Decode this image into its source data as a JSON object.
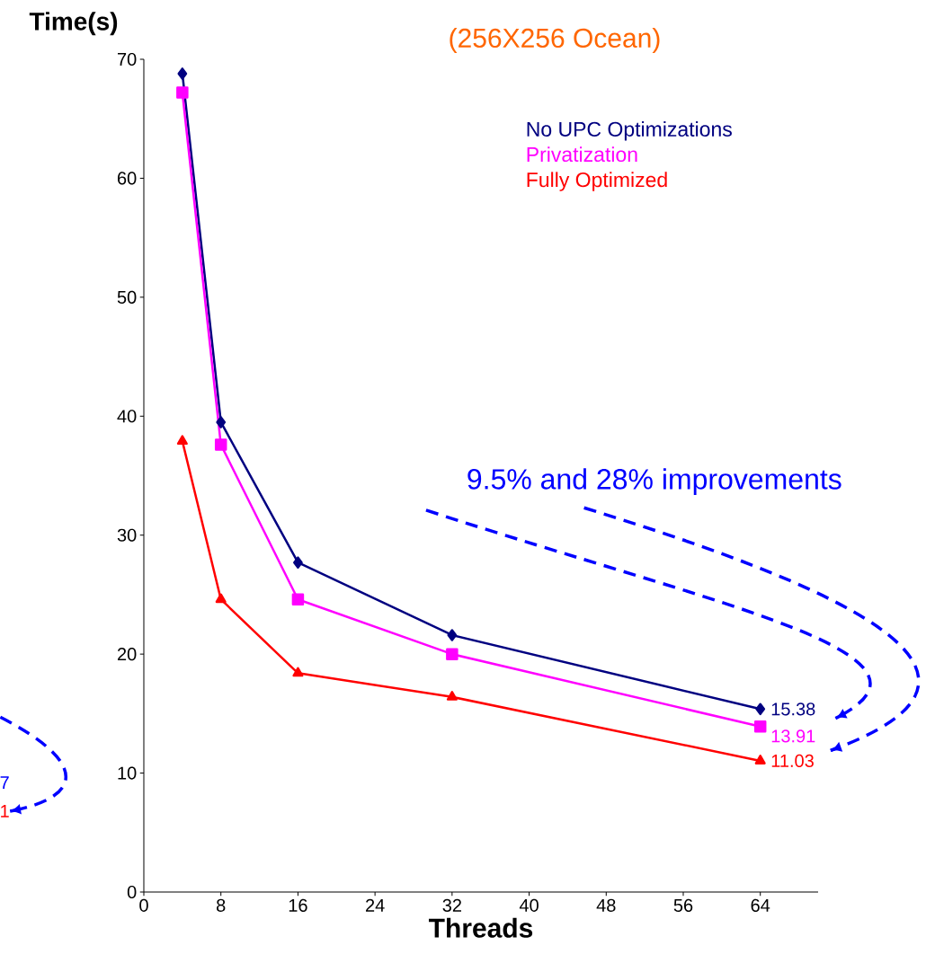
{
  "chart_data": {
    "type": "line",
    "title": "(256X256 Ocean)",
    "xlabel": "Threads",
    "ylabel": "Time(s)",
    "x": [
      4,
      8,
      16,
      32,
      64
    ],
    "xlim": [
      0,
      70
    ],
    "ylim": [
      0,
      70
    ],
    "xticks": [
      0,
      8,
      16,
      24,
      32,
      40,
      48,
      56,
      64
    ],
    "yticks": [
      0,
      10,
      20,
      30,
      40,
      50,
      60,
      70
    ],
    "legend": "top right",
    "series": [
      {
        "name": "No UPC Optimizations",
        "color": "#000080",
        "marker": "diamond",
        "values": [
          68.8,
          39.5,
          27.7,
          21.6,
          15.38
        ],
        "value_labels": [
          null,
          null,
          null,
          null,
          "15.38"
        ]
      },
      {
        "name": "Privatization",
        "color": "#ff00ff",
        "marker": "square",
        "values": [
          67.2,
          37.6,
          24.6,
          20.0,
          13.91
        ],
        "value_labels": [
          null,
          null,
          null,
          null,
          "13.91"
        ]
      },
      {
        "name": "Fully Optimized",
        "color": "#ff0000",
        "marker": "triangle",
        "values": [
          37.9,
          24.6,
          18.4,
          16.4,
          11.03
        ],
        "value_labels": [
          null,
          null,
          null,
          null,
          "11.03"
        ]
      }
    ],
    "annotations": [
      "9.5% and 28% improvements",
      "7",
      "1"
    ]
  }
}
